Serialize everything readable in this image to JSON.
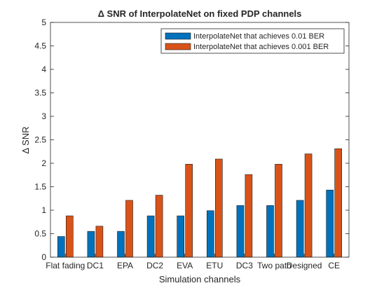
{
  "chart_data": {
    "type": "bar",
    "title": "Δ SNR of InterpolateNet on fixed PDP channels",
    "xlabel": "Simulation channels",
    "ylabel": "Δ SNR",
    "ylim": [
      0,
      5
    ],
    "yticks": [
      "0",
      "0.5",
      "1",
      "1.5",
      "2",
      "2.5",
      "3",
      "3.5",
      "4",
      "4.5",
      "5"
    ],
    "grid": false,
    "legend_position": "top-right",
    "categories": [
      "Flat fading",
      "DC1",
      "EPA",
      "DC2",
      "EVA",
      "ETU",
      "DC3",
      "Two path",
      "Designed",
      "CE"
    ],
    "series": [
      {
        "name": "InterpolateNet that achieves 0.01 BER",
        "color": "#0072BD",
        "values": [
          0.44,
          0.55,
          0.55,
          0.88,
          0.88,
          0.99,
          1.1,
          1.1,
          1.21,
          1.43
        ]
      },
      {
        "name": "InterpolateNet that achieves 0.001 BER",
        "color": "#D95319",
        "values": [
          0.88,
          0.66,
          1.21,
          1.32,
          1.98,
          2.09,
          1.76,
          1.98,
          2.2,
          2.31
        ]
      }
    ]
  }
}
